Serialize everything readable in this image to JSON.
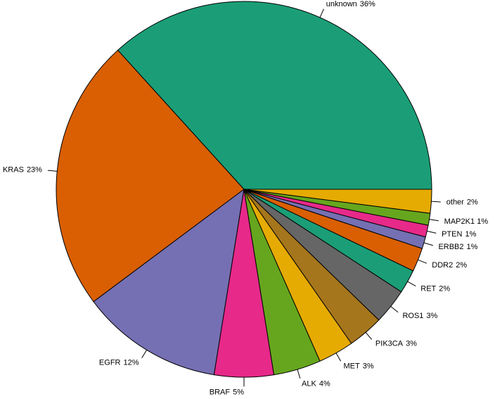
{
  "chart_data": {
    "type": "pie",
    "categories": [
      "unknown",
      "KRAS",
      "EGFR",
      "BRAF",
      "ALK",
      "MET",
      "PIK3CA",
      "ROS1",
      "RET",
      "DDR2",
      "ERBB2",
      "PTEN",
      "MAP2K1",
      "other"
    ],
    "values": [
      36,
      23,
      12,
      5,
      4,
      3,
      3,
      3,
      2,
      2,
      1,
      1,
      1,
      2
    ],
    "value_labels": [
      "36%",
      "23%",
      "12%",
      "5%",
      "4%",
      "3%",
      "3%",
      "3%",
      "2%",
      "2%",
      "1%",
      "1%",
      "1%",
      "2%"
    ],
    "colors": [
      "#1b9e77",
      "#d95f02",
      "#7570b3",
      "#e7298a",
      "#66a61e",
      "#e6ab02",
      "#a6761d",
      "#666666",
      "#1b9e77",
      "#d95f02",
      "#7570b3",
      "#e7298a",
      "#66a61e",
      "#e6ab02"
    ],
    "start_angle": 0,
    "direction": "counterclockwise"
  }
}
